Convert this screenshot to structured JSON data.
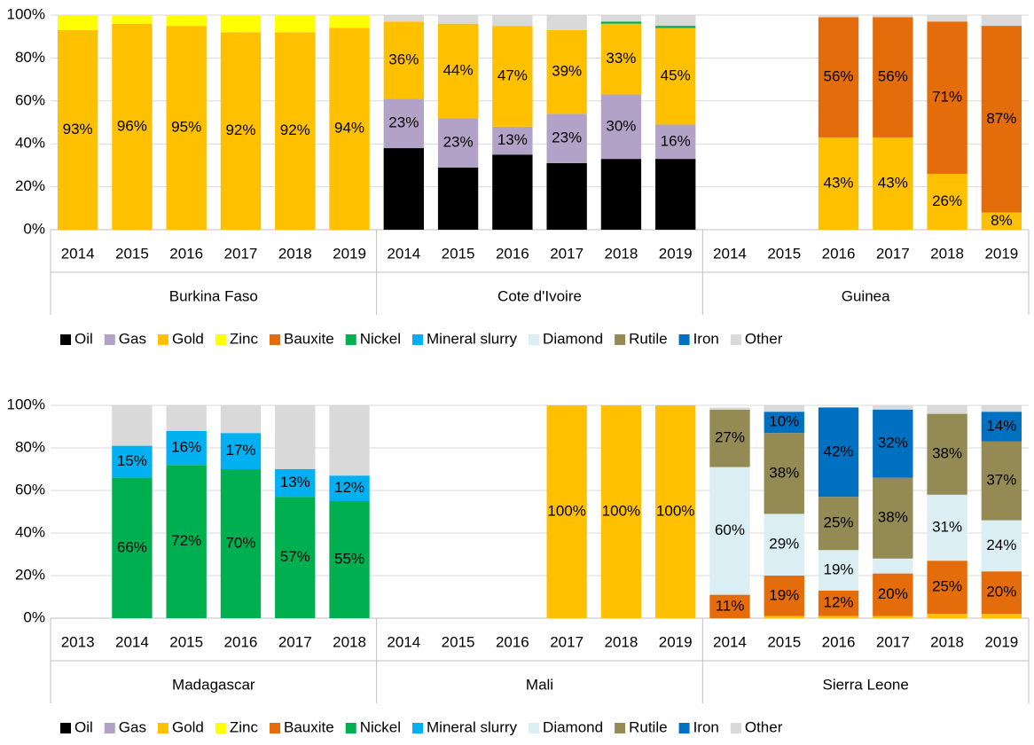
{
  "chart_data": [
    {
      "type": "bar",
      "groups": [
        {
          "name": "Burkina Faso",
          "categories": [
            "2014",
            "2015",
            "2016",
            "2017",
            "2018",
            "2019"
          ]
        },
        {
          "name": "Cote d'Ivoire",
          "categories": [
            "2014",
            "2015",
            "2016",
            "2017",
            "2018",
            "2019"
          ]
        },
        {
          "name": "Guinea",
          "categories": [
            "2014",
            "2015",
            "2016",
            "2017",
            "2018",
            "2019"
          ]
        }
      ],
      "ylim": [
        0,
        100
      ],
      "yticks": [
        {
          "value": 0,
          "label": "0%"
        },
        {
          "value": 20,
          "label": "20%"
        },
        {
          "value": 40,
          "label": "40%"
        },
        {
          "value": 60,
          "label": "60%"
        },
        {
          "value": 80,
          "label": "80%"
        },
        {
          "value": 100,
          "label": "100%"
        }
      ],
      "grid": true,
      "legend": "bottom",
      "series": [
        {
          "name": "Oil",
          "color": "#000000",
          "values": [
            null,
            null,
            null,
            null,
            null,
            null,
            38,
            29,
            35,
            31,
            33,
            33,
            null,
            null,
            null,
            null,
            null,
            null
          ],
          "value_labels": [
            null,
            null,
            null,
            null,
            null,
            null,
            "38%",
            "29%",
            "35%",
            "31%",
            "33%",
            "33%",
            null,
            null,
            null,
            null,
            null,
            null
          ]
        },
        {
          "name": "Gas",
          "color": "#b3a2c7",
          "values": [
            null,
            null,
            null,
            null,
            null,
            null,
            23,
            23,
            13,
            23,
            30,
            16,
            null,
            null,
            null,
            null,
            null,
            null
          ],
          "value_labels": [
            null,
            null,
            null,
            null,
            null,
            null,
            "23%",
            "23%",
            "13%",
            "23%",
            "30%",
            "16%",
            null,
            null,
            null,
            null,
            null,
            null
          ]
        },
        {
          "name": "Gold",
          "color": "#ffc000",
          "values": [
            93,
            96,
            95,
            92,
            92,
            94,
            36,
            44,
            47,
            39,
            33,
            45,
            null,
            null,
            43,
            43,
            26,
            8
          ],
          "value_labels": [
            "93%",
            "96%",
            "95%",
            "92%",
            "92%",
            "94%",
            "36%",
            "44%",
            "47%",
            "39%",
            "33%",
            "45%",
            null,
            null,
            "43%",
            "43%",
            "26%",
            "8%"
          ]
        },
        {
          "name": "Zinc",
          "color": "#ffff00",
          "values": [
            7,
            4,
            5,
            8,
            8,
            6,
            null,
            null,
            null,
            null,
            null,
            null,
            null,
            null,
            null,
            null,
            null,
            null
          ]
        },
        {
          "name": "Bauxite",
          "color": "#e46c0a",
          "values": [
            null,
            null,
            null,
            null,
            null,
            null,
            null,
            null,
            null,
            null,
            null,
            null,
            null,
            null,
            56,
            56,
            71,
            87
          ],
          "value_labels": [
            null,
            null,
            null,
            null,
            null,
            null,
            null,
            null,
            null,
            null,
            null,
            null,
            null,
            null,
            "56%",
            "56%",
            "71%",
            "87%"
          ]
        },
        {
          "name": "Nickel",
          "color": "#00b050",
          "values": [
            null,
            null,
            null,
            null,
            null,
            null,
            null,
            null,
            null,
            null,
            1,
            1,
            null,
            null,
            null,
            null,
            null,
            null
          ]
        },
        {
          "name": "Mineral slurry",
          "color": "#00b0f0",
          "values": [
            null,
            null,
            null,
            null,
            null,
            null,
            null,
            null,
            null,
            null,
            null,
            null,
            null,
            null,
            null,
            null,
            null,
            null
          ]
        },
        {
          "name": "Diamond",
          "color": "#daeef3",
          "values": [
            null,
            null,
            null,
            null,
            null,
            null,
            null,
            null,
            null,
            null,
            null,
            null,
            null,
            null,
            null,
            null,
            null,
            null
          ]
        },
        {
          "name": "Rutile",
          "color": "#948a54",
          "values": [
            null,
            null,
            null,
            null,
            null,
            null,
            null,
            null,
            null,
            null,
            null,
            null,
            null,
            null,
            null,
            null,
            null,
            null
          ]
        },
        {
          "name": "Iron",
          "color": "#0070c0",
          "values": [
            null,
            null,
            null,
            null,
            null,
            null,
            null,
            null,
            null,
            null,
            null,
            null,
            null,
            null,
            null,
            null,
            null,
            null
          ]
        },
        {
          "name": "Other",
          "color": "#d9d9d9",
          "values": [
            null,
            null,
            null,
            null,
            null,
            null,
            3,
            4,
            5,
            7,
            3,
            5,
            null,
            null,
            1,
            1,
            3,
            5
          ]
        }
      ]
    },
    {
      "type": "bar",
      "groups": [
        {
          "name": "Madagascar",
          "categories": [
            "2013",
            "2014",
            "2015",
            "2016",
            "2017",
            "2018"
          ]
        },
        {
          "name": "Mali",
          "categories": [
            "2014",
            "2015",
            "2016",
            "2017",
            "2018",
            "2019"
          ]
        },
        {
          "name": "Sierra Leone",
          "categories": [
            "2014",
            "2015",
            "2016",
            "2017",
            "2018",
            "2019"
          ]
        }
      ],
      "ylim": [
        0,
        100
      ],
      "yticks": [
        {
          "value": 0,
          "label": "0%"
        },
        {
          "value": 20,
          "label": "20%"
        },
        {
          "value": 40,
          "label": "40%"
        },
        {
          "value": 60,
          "label": "60%"
        },
        {
          "value": 80,
          "label": "80%"
        },
        {
          "value": 100,
          "label": "100%"
        }
      ],
      "grid": true,
      "legend": "bottom",
      "series": [
        {
          "name": "Oil",
          "color": "#000000",
          "values": [
            null,
            null,
            null,
            null,
            null,
            null,
            null,
            null,
            null,
            null,
            null,
            null,
            null,
            null,
            null,
            null,
            null,
            null
          ]
        },
        {
          "name": "Gas",
          "color": "#b3a2c7",
          "values": [
            null,
            null,
            null,
            null,
            null,
            null,
            null,
            null,
            null,
            null,
            null,
            null,
            null,
            null,
            null,
            null,
            null,
            null
          ]
        },
        {
          "name": "Gold",
          "color": "#ffc000",
          "values": [
            null,
            null,
            null,
            null,
            null,
            null,
            null,
            null,
            null,
            100,
            100,
            100,
            null,
            1,
            1,
            1,
            2,
            2
          ],
          "value_labels": [
            null,
            null,
            null,
            null,
            null,
            null,
            null,
            null,
            null,
            "100%",
            "100%",
            "100%",
            null,
            null,
            null,
            null,
            null,
            null
          ]
        },
        {
          "name": "Zinc",
          "color": "#ffff00",
          "values": [
            null,
            null,
            null,
            null,
            null,
            null,
            null,
            null,
            null,
            null,
            null,
            null,
            null,
            null,
            null,
            null,
            null,
            null
          ]
        },
        {
          "name": "Bauxite",
          "color": "#e46c0a",
          "values": [
            null,
            null,
            null,
            null,
            null,
            null,
            null,
            null,
            null,
            null,
            null,
            null,
            11,
            19,
            12,
            20,
            25,
            20
          ],
          "value_labels": [
            null,
            null,
            null,
            null,
            null,
            null,
            null,
            null,
            null,
            null,
            null,
            null,
            "11%",
            "19%",
            "12%",
            "20%",
            "25%",
            "20%"
          ]
        },
        {
          "name": "Nickel",
          "color": "#00b050",
          "values": [
            null,
            66,
            72,
            70,
            57,
            55,
            null,
            null,
            null,
            null,
            null,
            null,
            null,
            null,
            null,
            null,
            null,
            null
          ],
          "value_labels": [
            null,
            "66%",
            "72%",
            "70%",
            "57%",
            "55%",
            null,
            null,
            null,
            null,
            null,
            null,
            null,
            null,
            null,
            null,
            null,
            null
          ]
        },
        {
          "name": "Mineral slurry",
          "color": "#00b0f0",
          "values": [
            null,
            15,
            16,
            17,
            13,
            12,
            null,
            null,
            null,
            null,
            null,
            null,
            null,
            null,
            null,
            null,
            null,
            null
          ],
          "value_labels": [
            null,
            "15%",
            "16%",
            "17%",
            "13%",
            "12%",
            null,
            null,
            null,
            null,
            null,
            null,
            null,
            null,
            null,
            null,
            null,
            null
          ]
        },
        {
          "name": "Diamond",
          "color": "#daeef3",
          "values": [
            null,
            null,
            null,
            null,
            null,
            null,
            null,
            null,
            null,
            null,
            null,
            null,
            60,
            29,
            19,
            7,
            31,
            24
          ],
          "value_labels": [
            null,
            null,
            null,
            null,
            null,
            null,
            null,
            null,
            null,
            null,
            null,
            null,
            "60%",
            "29%",
            "19%",
            null,
            "31%",
            "24%"
          ]
        },
        {
          "name": "Rutile",
          "color": "#948a54",
          "values": [
            null,
            null,
            null,
            null,
            null,
            null,
            null,
            null,
            null,
            null,
            null,
            null,
            27,
            38,
            25,
            38,
            38,
            37
          ],
          "value_labels": [
            null,
            null,
            null,
            null,
            null,
            null,
            null,
            null,
            null,
            null,
            null,
            null,
            "27%",
            "38%",
            "25%",
            "38%",
            "38%",
            "37%"
          ]
        },
        {
          "name": "Iron",
          "color": "#0070c0",
          "values": [
            null,
            null,
            null,
            null,
            null,
            null,
            null,
            null,
            null,
            null,
            null,
            null,
            null,
            10,
            42,
            32,
            null,
            14
          ],
          "value_labels": [
            null,
            null,
            null,
            null,
            null,
            null,
            null,
            null,
            null,
            null,
            null,
            null,
            null,
            "10%",
            "42%",
            "32%",
            null,
            "14%"
          ]
        },
        {
          "name": "Other",
          "color": "#d9d9d9",
          "values": [
            null,
            19,
            12,
            13,
            30,
            33,
            null,
            null,
            null,
            null,
            null,
            null,
            1,
            3,
            null,
            2,
            4,
            3
          ]
        }
      ]
    }
  ]
}
